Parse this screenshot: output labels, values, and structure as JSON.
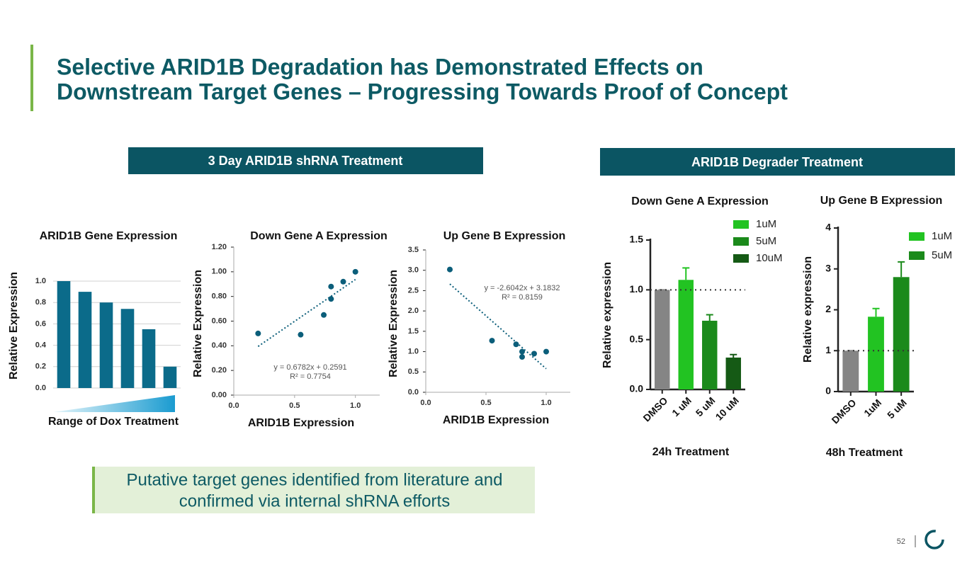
{
  "title": [
    "Selective ARID1B Degradation has Demonstrated Effects on",
    "Downstream Target Genes – Progressing Towards Proof of Concept"
  ],
  "left_banner": "3 Day ARID1B shRNA Treatment",
  "right_banner": "ARID1B Degrader Treatment",
  "callout": [
    "Putative target genes identified from literature and",
    "confirmed via internal shRNA efforts"
  ],
  "page_number": "52",
  "chart_data": [
    {
      "type": "bar",
      "title": "ARID1B Gene Expression",
      "ylabel": "Relative  Expression",
      "xlabel": "Range of Dox Treatment",
      "categories": [
        null,
        null,
        null,
        null,
        null,
        null
      ],
      "values": [
        1.0,
        0.9,
        0.8,
        0.74,
        0.55,
        0.2
      ],
      "color": "#0b6b8a",
      "ylim": [
        0,
        1.0
      ],
      "yticks": [
        {
          "value": 0,
          "label": "0.0"
        },
        0.2,
        0.4,
        0.6,
        0.8,
        {
          "value": 1,
          "label": "1.0"
        }
      ],
      "grid": true
    },
    {
      "type": "scatter",
      "title": "Down Gene A Expression",
      "ylabel": "Relative  Expression",
      "xlabel": "ARID1B Expression",
      "x": [
        0.2,
        0.55,
        0.74,
        0.8,
        0.8,
        0.9,
        1.0
      ],
      "values": [
        0.5,
        0.49,
        0.65,
        0.88,
        0.78,
        0.92,
        1.0
      ],
      "color": "#0b5e7a",
      "trendline": {
        "slope": 0.6782,
        "intercept": 0.2591
      },
      "annotations": [
        "y = 0.6782x + 0.2591",
        "R² = 0.7754"
      ],
      "xlim": [
        0,
        1.2
      ],
      "xticks": [
        {
          "value": 0,
          "label": "0.0"
        },
        0.5,
        {
          "value": 1,
          "label": "1.0"
        }
      ],
      "ylim": [
        0,
        1.2
      ],
      "yticks": [
        {
          "value": 0,
          "label": "0.00"
        },
        {
          "value": 0.2,
          "label": "0.20"
        },
        {
          "value": 0.4,
          "label": "0.40"
        },
        {
          "value": 0.6,
          "label": "0.60"
        },
        {
          "value": 0.8,
          "label": "0.80"
        },
        {
          "value": 1,
          "label": "1.00"
        },
        {
          "value": 1.2,
          "label": "1.20"
        }
      ]
    },
    {
      "type": "scatter",
      "title": "Up Gene B Expression",
      "ylabel": "Relative  Expression",
      "xlabel": "ARID1B Expression",
      "x": [
        0.2,
        0.55,
        0.75,
        0.8,
        0.8,
        0.9,
        1.0
      ],
      "values": [
        3.02,
        1.27,
        1.18,
        1.0,
        0.87,
        0.95,
        1.0
      ],
      "color": "#0b5e7a",
      "trendline": {
        "slope": -2.6042,
        "intercept": 3.1832
      },
      "annotations": [
        "y = -2.6042x + 3.1832",
        "R² = 0.8159"
      ],
      "xlim": [
        0,
        1.2
      ],
      "xticks": [
        {
          "value": 0,
          "label": "0.0"
        },
        0.5,
        {
          "value": 1,
          "label": "1.0"
        }
      ],
      "ylim": [
        0,
        3.5
      ],
      "yticks": [
        {
          "value": 0,
          "label": "0.0"
        },
        0.5,
        {
          "value": 1,
          "label": "1.0"
        },
        1.5,
        {
          "value": 2,
          "label": "2.0"
        },
        2.5,
        {
          "value": 3,
          "label": "3.0"
        },
        3.5
      ]
    },
    {
      "type": "bar",
      "title": "Down Gene A Expression",
      "ylabel": "Relative expression",
      "xlabel": "24h Treatment",
      "categories": [
        "DMSO",
        "1 uM",
        "5 uM",
        "10 uM"
      ],
      "values": [
        1.0,
        1.1,
        0.69,
        0.32
      ],
      "errors": [
        0,
        0.12,
        0.06,
        0.03
      ],
      "colors": [
        "#858585",
        "#22c322",
        "#1b8a1b",
        "#155a15"
      ],
      "legend": [
        {
          "name": "1uM",
          "color": "#22c322"
        },
        {
          "name": "5uM",
          "color": "#1b8a1b"
        },
        {
          "name": "10uM",
          "color": "#155a15"
        }
      ],
      "reference_line": 1,
      "ylim": [
        0,
        1.5
      ],
      "yticks": [
        {
          "value": 0,
          "label": "0.0"
        },
        0.5,
        {
          "value": 1,
          "label": "1.0"
        },
        1.5
      ]
    },
    {
      "type": "bar",
      "title": "Up Gene B Expression",
      "ylabel": "Relative expression",
      "xlabel": "48h Treatment",
      "categories": [
        "DMSO",
        "1uM",
        "5 uM"
      ],
      "values": [
        1.0,
        1.83,
        2.8
      ],
      "errors": [
        0,
        0.2,
        0.37
      ],
      "colors": [
        "#858585",
        "#22c322",
        "#1b8a1b"
      ],
      "legend": [
        {
          "name": "1uM",
          "color": "#22c322"
        },
        {
          "name": "5uM",
          "color": "#1b8a1b"
        }
      ],
      "reference_line": 1,
      "ylim": [
        0,
        4
      ],
      "yticks": [
        0,
        1,
        2,
        3,
        4
      ]
    }
  ]
}
